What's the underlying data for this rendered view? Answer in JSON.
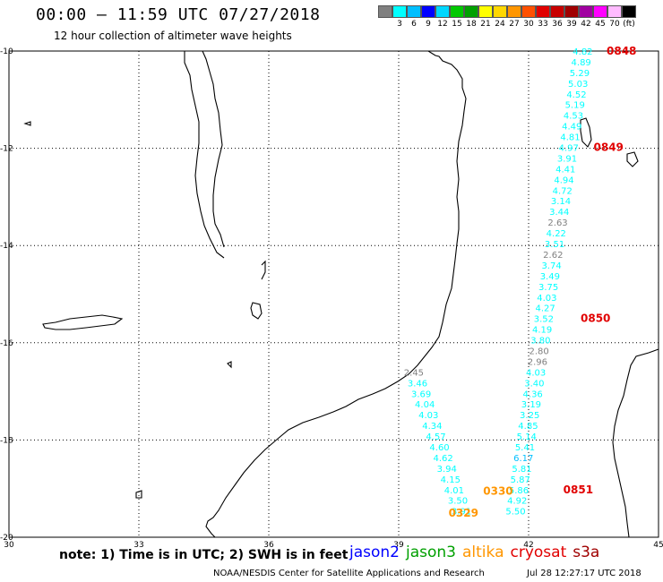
{
  "header": {
    "title": "00:00 – 11:59 UTC 07/27/2018",
    "subtitle": "12 hour collection of altimeter wave heights"
  },
  "legend": {
    "colors": [
      "#808080",
      "#00ffff",
      "#00bfff",
      "#0000ff",
      "#00d7ff",
      "#00c800",
      "#00a000",
      "#ffff00",
      "#ffd700",
      "#ff9600",
      "#ff5000",
      "#e10000",
      "#c80000",
      "#a00000",
      "#a000a0",
      "#ff00ff",
      "#ffbbff",
      "#000000"
    ],
    "labels": [
      {
        "text": "3",
        "index": 1
      },
      {
        "text": "6",
        "index": 2
      },
      {
        "text": "9",
        "index": 3
      },
      {
        "text": "12",
        "index": 4
      },
      {
        "text": "15",
        "index": 5
      },
      {
        "text": "18",
        "index": 6
      },
      {
        "text": "21",
        "index": 7
      },
      {
        "text": "24",
        "index": 8
      },
      {
        "text": "27",
        "index": 9
      },
      {
        "text": "30",
        "index": 10
      },
      {
        "text": "33",
        "index": 11
      },
      {
        "text": "36",
        "index": 12
      },
      {
        "text": "39",
        "index": 13
      },
      {
        "text": "42",
        "index": 14
      },
      {
        "text": "45",
        "index": 15
      },
      {
        "text": "70",
        "index": 16
      },
      {
        "text": "(ft)",
        "index": 17
      }
    ]
  },
  "axes": {
    "lat_labels": [
      {
        "text": "-10",
        "value": -10
      },
      {
        "text": "-12",
        "value": -12
      },
      {
        "text": "-14",
        "value": -14
      },
      {
        "text": "-16",
        "value": -16
      },
      {
        "text": "-18",
        "value": -18
      },
      {
        "text": "-20",
        "value": -20
      }
    ],
    "lon_labels": [
      {
        "text": "30",
        "value": 30
      },
      {
        "text": "33",
        "value": 33
      },
      {
        "text": "36",
        "value": 36
      },
      {
        "text": "39",
        "value": 39
      },
      {
        "text": "42",
        "value": 42
      },
      {
        "text": "45",
        "value": 45
      }
    ]
  },
  "tracks": [
    {
      "points": [
        {
          "v": "4.82",
          "lat": -10.0
        },
        {
          "v": "4.89",
          "lat": -10.22
        },
        {
          "v": "5.29",
          "lat": -10.44
        },
        {
          "v": "5.03",
          "lat": -10.66
        },
        {
          "v": "4.52",
          "lat": -10.88
        },
        {
          "v": "5.19",
          "lat": -11.1
        },
        {
          "v": "4.53",
          "lat": -11.32
        },
        {
          "v": "4.49",
          "lat": -11.54
        },
        {
          "v": "4.81",
          "lat": -11.76
        },
        {
          "v": "4.97",
          "lat": -11.98
        },
        {
          "v": "3.91",
          "lat": -12.2
        },
        {
          "v": "4.41",
          "lat": -12.42
        },
        {
          "v": "4.94",
          "lat": -12.64
        },
        {
          "v": "4.72",
          "lat": -12.86
        },
        {
          "v": "3.14",
          "lat": -13.08
        },
        {
          "v": "3.44",
          "lat": -13.3
        },
        {
          "v": "2.63",
          "lat": -13.52
        },
        {
          "v": "4.22",
          "lat": -13.74
        },
        {
          "v": "3.51",
          "lat": -13.96
        },
        {
          "v": "2.62",
          "lat": -14.18
        },
        {
          "v": "3.74",
          "lat": -14.4
        },
        {
          "v": "3.49",
          "lat": -14.62
        },
        {
          "v": "3.75",
          "lat": -14.84
        },
        {
          "v": "4.03",
          "lat": -15.06
        },
        {
          "v": "4.27",
          "lat": -15.28
        },
        {
          "v": "3.52",
          "lat": -15.5
        },
        {
          "v": "4.19",
          "lat": -15.72
        },
        {
          "v": "3.80",
          "lat": -15.94
        },
        {
          "v": "2.80",
          "lat": -16.16
        },
        {
          "v": "2.96",
          "lat": -16.38
        },
        {
          "v": "4.03",
          "lat": -16.6
        },
        {
          "v": "3.40",
          "lat": -16.82
        },
        {
          "v": "4.36",
          "lat": -17.04
        },
        {
          "v": "3.19",
          "lat": -17.26
        },
        {
          "v": "3.25",
          "lat": -17.48
        },
        {
          "v": "4.85",
          "lat": -17.7
        },
        {
          "v": "5.14",
          "lat": -17.92
        },
        {
          "v": "5.41",
          "lat": -18.14
        },
        {
          "v": "6.17",
          "lat": -18.36
        },
        {
          "v": "5.81",
          "lat": -18.58
        },
        {
          "v": "5.87",
          "lat": -18.8
        },
        {
          "v": "5.86",
          "lat": -19.02
        },
        {
          "v": "4.92",
          "lat": -19.24
        },
        {
          "v": "5.50",
          "lat": -19.46
        }
      ]
    },
    {
      "points": [
        {
          "v": "2.45",
          "lat": -16.6
        },
        {
          "v": "3.46",
          "lat": -16.82
        },
        {
          "v": "3.69",
          "lat": -17.04
        },
        {
          "v": "4.04",
          "lat": -17.26
        },
        {
          "v": "4.03",
          "lat": -17.48
        },
        {
          "v": "4.34",
          "lat": -17.7
        },
        {
          "v": "4.57",
          "lat": -17.92
        },
        {
          "v": "4.60",
          "lat": -18.14
        },
        {
          "v": "4.62",
          "lat": -18.36
        },
        {
          "v": "3.94",
          "lat": -18.58
        },
        {
          "v": "4.15",
          "lat": -18.8
        },
        {
          "v": "4.01",
          "lat": -19.02
        },
        {
          "v": "3.50",
          "lat": -19.24
        },
        {
          "v": "3.91",
          "lat": -19.46
        }
      ]
    }
  ],
  "time_labels": [
    {
      "text": "0848",
      "lon": 43.8,
      "lat": -10.0,
      "color": "#e10000"
    },
    {
      "text": "0849",
      "lon": 43.5,
      "lat": -11.98,
      "color": "#e10000"
    },
    {
      "text": "0850",
      "lon": 43.2,
      "lat": -15.5,
      "color": "#e10000"
    },
    {
      "text": "0851",
      "lon": 42.8,
      "lat": -19.02,
      "color": "#e10000"
    },
    {
      "text": "0330",
      "lon": 40.95,
      "lat": -19.05,
      "color": "#ff9600"
    },
    {
      "text": "0329",
      "lon": 40.15,
      "lat": -19.5,
      "color": "#ff9600"
    }
  ],
  "note": "note:  1) Time is in UTC;  2) SWH is in feet",
  "satellites": [
    {
      "name": "jason2",
      "color": "#0000ff"
    },
    {
      "name": "jason3",
      "color": "#00a000"
    },
    {
      "name": "altika",
      "color": "#ff9600"
    },
    {
      "name": "cryosat",
      "color": "#e10000"
    },
    {
      "name": "s3a",
      "color": "#a00000"
    }
  ],
  "credit": "NOAA/NESDIS Center for Satellite Applications and Research",
  "timestamp": "Jul 28 12:27:17 UTC 2018"
}
